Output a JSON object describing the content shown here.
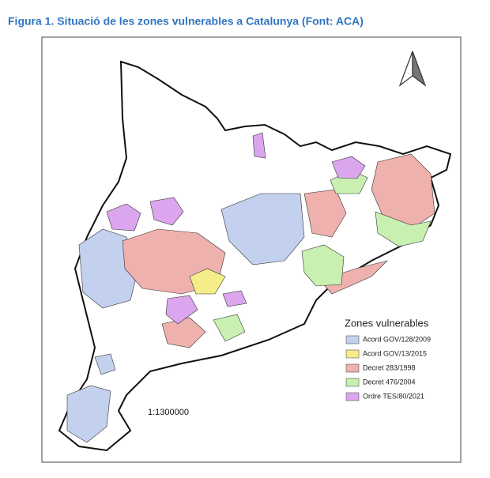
{
  "caption": "Figura 1. Situació de les zones vulnerables a Catalunya (Font: ACA)",
  "legend": {
    "title": "Zones vulnerables",
    "items": [
      {
        "label": "Acord GOV/128/2009",
        "color": "#c3d0ee"
      },
      {
        "label": "Acord GOV/13/2015",
        "color": "#f5ec8a"
      },
      {
        "label": "Decret 283/1998",
        "color": "#eeb1ad"
      },
      {
        "label": "Decret 476/2004",
        "color": "#c9f0b1"
      },
      {
        "label": "Ordre TES/80/2021",
        "color": "#dca6ef"
      }
    ]
  },
  "scale": "1:1300000"
}
